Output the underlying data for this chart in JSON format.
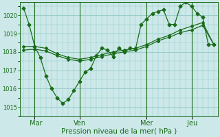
{
  "background_color": "#cce8e8",
  "grid_color": "#99cccc",
  "line_color": "#1a6b1a",
  "xlabel": "Pression niveau de la mer( hPa )",
  "ylim": [
    1014.5,
    1020.7
  ],
  "yticks": [
    1015,
    1016,
    1017,
    1018,
    1019,
    1020
  ],
  "day_labels": [
    " Mar",
    "Ven",
    "Mer",
    " Jeu"
  ],
  "day_positions": [
    6,
    30,
    66,
    90
  ],
  "xlim": [
    -2,
    104
  ],
  "series1_x": [
    0,
    3,
    6,
    9,
    12,
    15,
    18,
    21,
    24,
    27,
    30,
    33,
    36,
    39,
    42,
    45,
    48,
    51,
    54,
    57,
    60,
    63,
    66,
    69,
    72,
    75,
    78,
    81,
    84,
    87,
    90,
    93,
    96,
    99,
    102
  ],
  "series1_y": [
    1020.4,
    1019.5,
    1018.3,
    1017.7,
    1016.7,
    1016.0,
    1015.5,
    1015.2,
    1015.4,
    1015.9,
    1016.4,
    1016.9,
    1017.1,
    1017.8,
    1018.2,
    1018.1,
    1017.75,
    1018.2,
    1018.0,
    1018.2,
    1018.15,
    1019.5,
    1019.8,
    1020.1,
    1020.2,
    1020.3,
    1019.5,
    1019.5,
    1020.5,
    1020.7,
    1020.5,
    1020.1,
    1019.9,
    1018.4,
    1018.4
  ],
  "series2_x": [
    0,
    6,
    12,
    18,
    24,
    30,
    36,
    42,
    48,
    54,
    60,
    66,
    72,
    78,
    84,
    90,
    96,
    102
  ],
  "series2_y": [
    1018.3,
    1018.3,
    1018.2,
    1017.9,
    1017.7,
    1017.6,
    1017.7,
    1017.85,
    1018.0,
    1018.1,
    1018.2,
    1018.4,
    1018.7,
    1018.9,
    1019.2,
    1019.4,
    1019.6,
    1018.4
  ],
  "series3_x": [
    0,
    6,
    12,
    18,
    24,
    30,
    36,
    42,
    48,
    54,
    60,
    66,
    72,
    78,
    84,
    90,
    96,
    102
  ],
  "series3_y": [
    1018.1,
    1018.15,
    1018.05,
    1017.8,
    1017.6,
    1017.5,
    1017.6,
    1017.75,
    1017.9,
    1018.0,
    1018.1,
    1018.3,
    1018.6,
    1018.8,
    1019.05,
    1019.2,
    1019.45,
    1018.4
  ]
}
